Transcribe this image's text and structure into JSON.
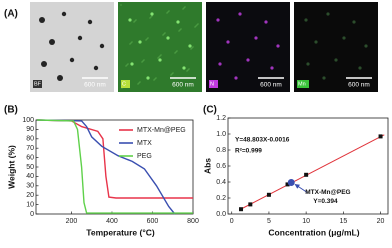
{
  "panel_labels": [
    "(A)",
    "(B)",
    "(C)"
  ],
  "micrographs": [
    {
      "label": "BF",
      "scale": "600 nm"
    },
    {
      "label": "C",
      "scale": "600 nm"
    },
    {
      "label": "N",
      "scale": "600 nm"
    },
    {
      "label": "Mn",
      "scale": "600 nm"
    }
  ],
  "chart_data": [
    {
      "type": "line",
      "xlabel": "Temperature (°C)",
      "ylabel": "Weight (%)",
      "xlim": [
        25,
        800
      ],
      "ylim": [
        0,
        100
      ],
      "xticks": [
        200,
        400,
        600,
        800
      ],
      "yticks": [
        0,
        10,
        20,
        30,
        40,
        50,
        60,
        70,
        80,
        90,
        100
      ],
      "legend": "upper right",
      "series": [
        {
          "name": "MTX-Mn@PEG",
          "color": "#e8344a",
          "x": [
            30,
            200,
            250,
            330,
            355,
            370,
            385,
            420,
            800
          ],
          "values": [
            100,
            99,
            93,
            88,
            80,
            40,
            18,
            17,
            17
          ]
        },
        {
          "name": "MTX",
          "color": "#3a4fb0",
          "x": [
            30,
            250,
            275,
            300,
            350,
            430,
            500,
            560,
            620,
            680,
            710
          ],
          "values": [
            100,
            99,
            93,
            82,
            72,
            62,
            56,
            48,
            30,
            8,
            0
          ]
        },
        {
          "name": "PEG",
          "color": "#5fd14a",
          "x": [
            30,
            210,
            230,
            250,
            262,
            275,
            800
          ],
          "values": [
            100,
            99,
            90,
            50,
            12,
            1,
            1
          ]
        }
      ]
    },
    {
      "type": "scatter",
      "xlabel": "Concentration (μg/mL)",
      "ylabel": "Abs",
      "xlim": [
        -0.5,
        21
      ],
      "ylim": [
        0,
        1.2
      ],
      "xticks": [
        0,
        5,
        10,
        15,
        20
      ],
      "yticks": [
        {
          "value": 0,
          "label": "0.0"
        },
        0.2,
        0.4,
        0.6,
        0.8,
        {
          "value": 1,
          "label": "1.0"
        },
        1.2
      ],
      "color": "#111111",
      "x": [
        1.25,
        2.5,
        5,
        7.5,
        10,
        20
      ],
      "values": [
        0.06,
        0.12,
        0.24,
        0.37,
        0.49,
        0.97
      ],
      "fit_line": {
        "color": "#e0333a",
        "x": [
          1,
          20.5
        ],
        "values": [
          0.05,
          0.99
        ]
      },
      "highlight": {
        "color": "#3a4fb0",
        "x": 8,
        "value": 0.394,
        "label": "MTX-Mn@PEG",
        "value_label": "Y=0.394"
      },
      "annotations": [
        "Y=48.803X-0.0016",
        "R²=0.999"
      ]
    }
  ]
}
